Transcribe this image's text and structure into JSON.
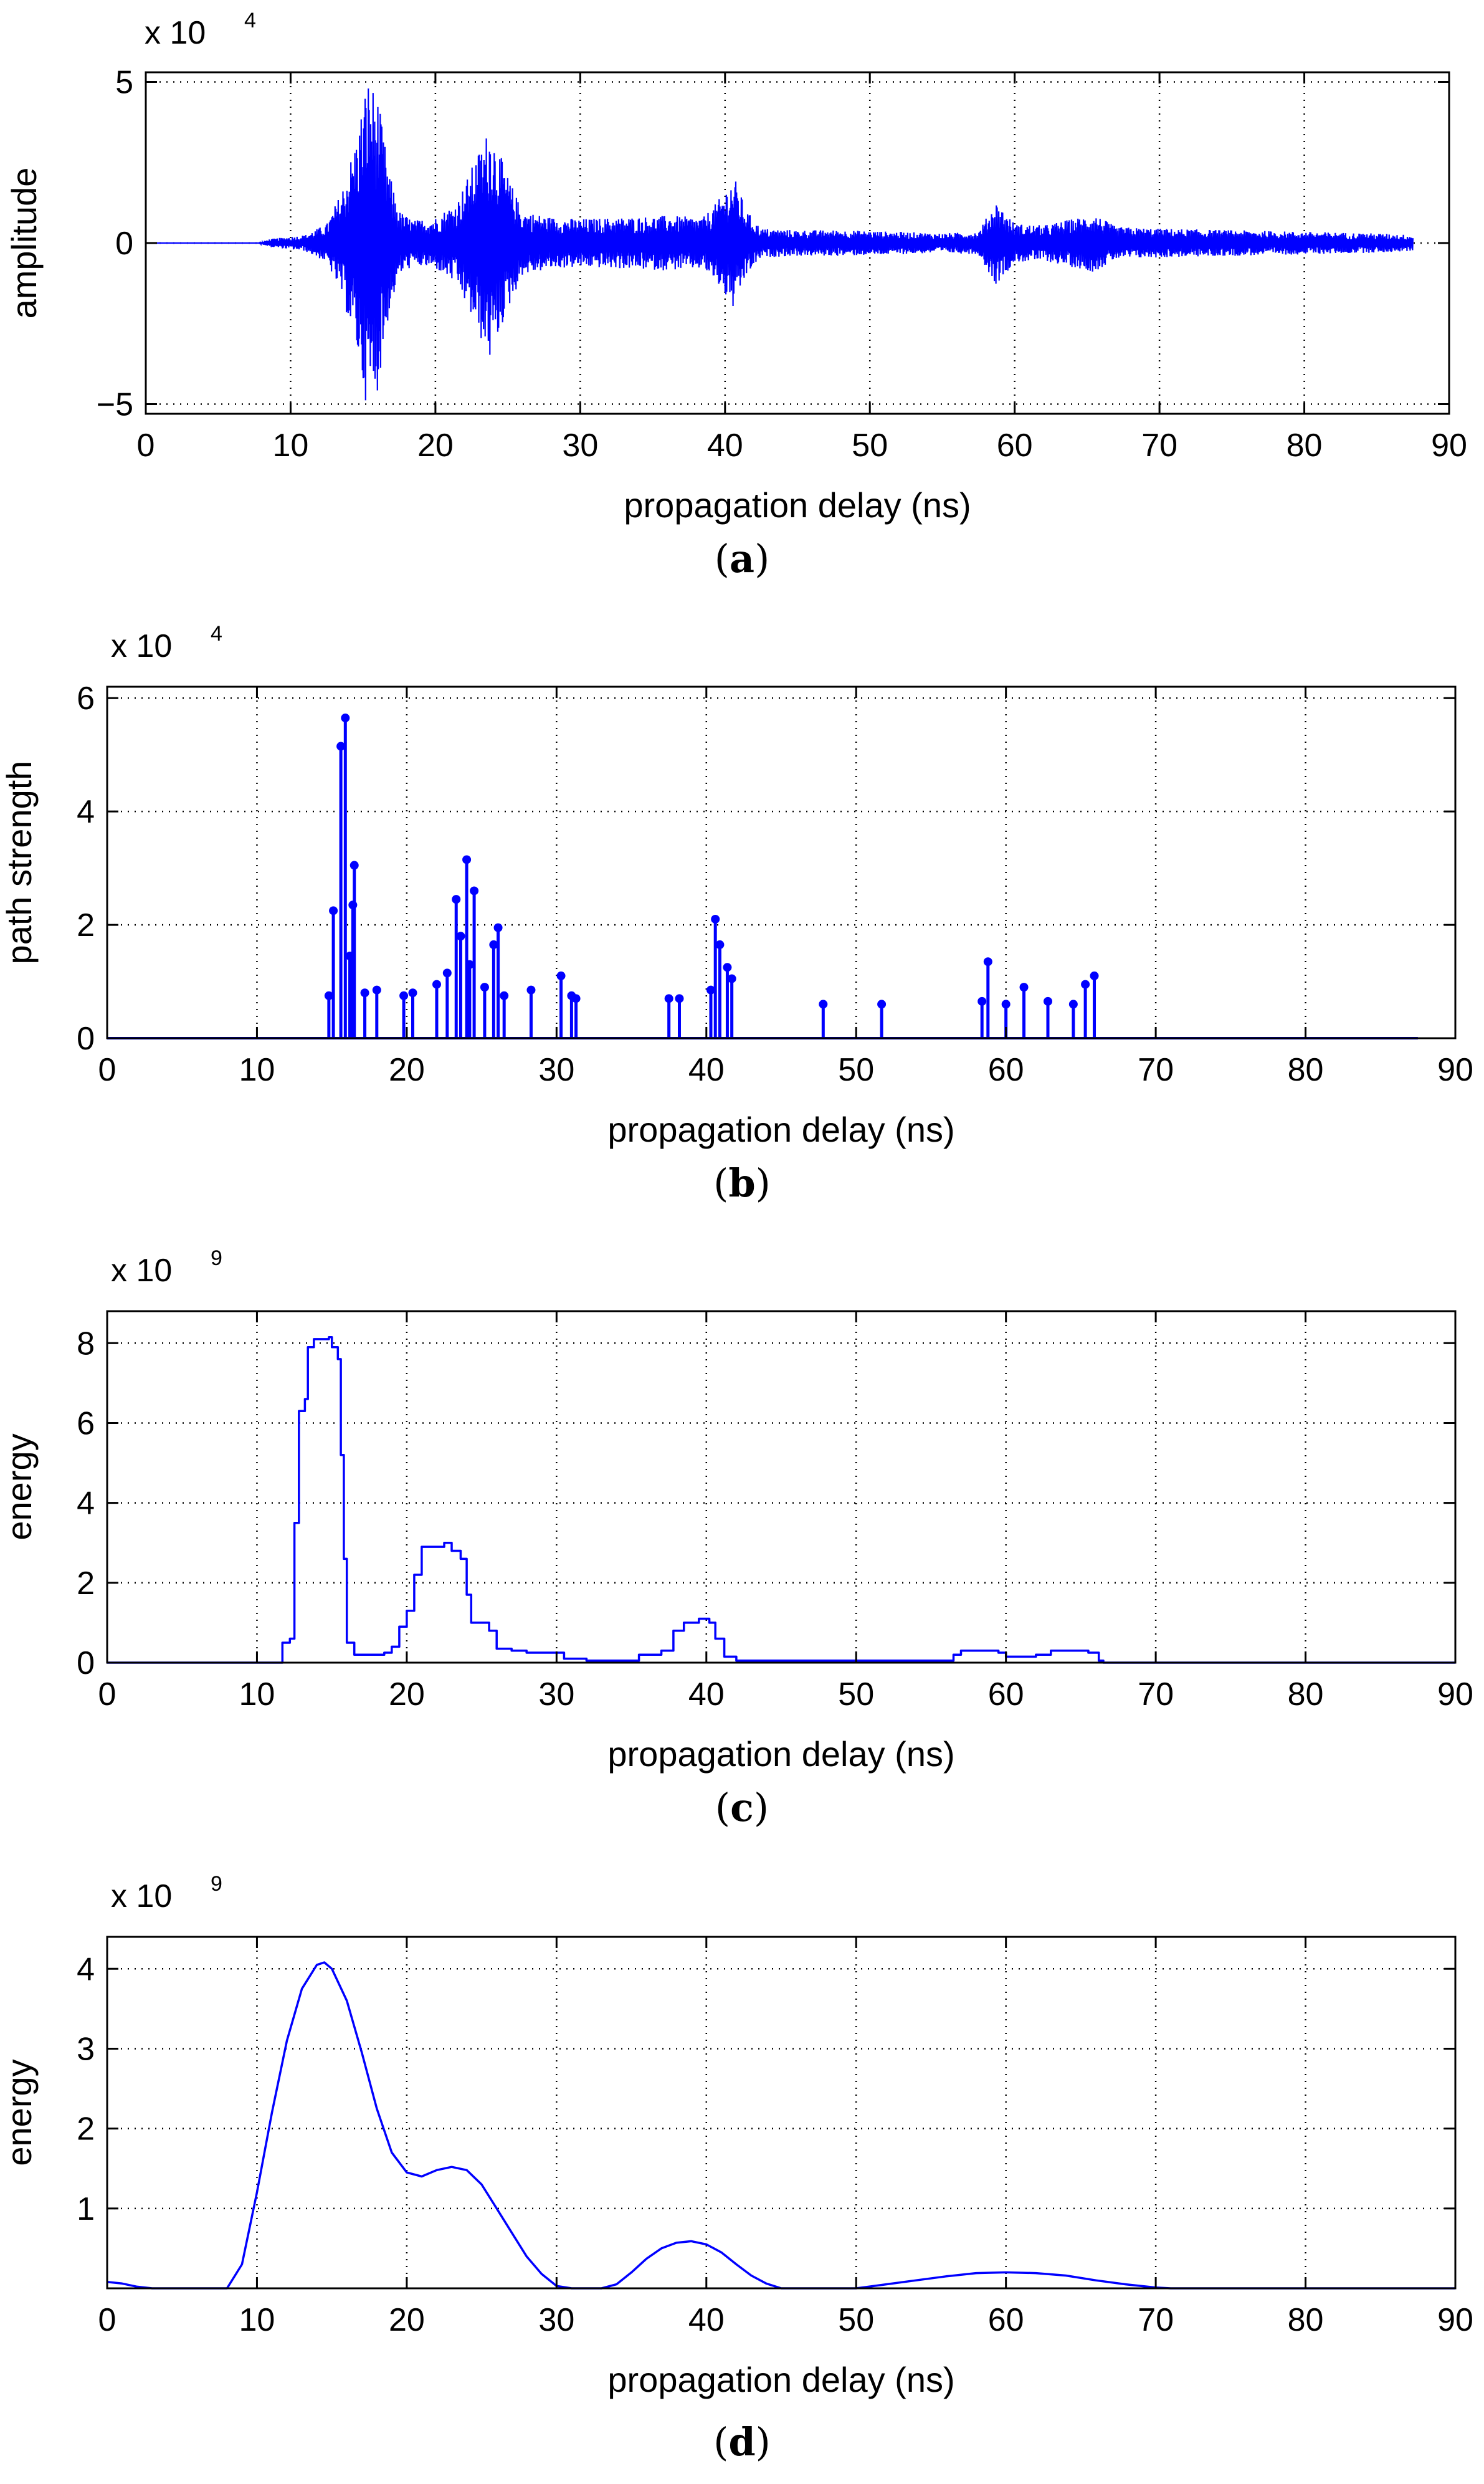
{
  "colors": {
    "line": "#0000ff",
    "axis": "#000000",
    "grid": "#000000"
  },
  "captions": [
    {
      "open": "(",
      "letter": "a",
      "close": ")"
    },
    {
      "open": "(",
      "letter": "b",
      "close": ")"
    },
    {
      "open": "(",
      "letter": "c",
      "close": ")"
    },
    {
      "open": "(",
      "letter": "d",
      "close": ")"
    }
  ],
  "chart_data": [
    {
      "id": "a",
      "type": "line",
      "title": "",
      "xlabel": "propagation delay (ns)",
      "ylabel": "amplitude",
      "exponent_label": "x 10",
      "exponent_power": "4",
      "xlim": [
        0,
        90
      ],
      "ylim": [
        -5.3,
        5.3
      ],
      "xticks": [
        0,
        10,
        20,
        30,
        40,
        50,
        60,
        70,
        80,
        90
      ],
      "yticks": [
        -5,
        0,
        5
      ],
      "ytick_labels": [
        "−5",
        "0",
        "5"
      ],
      "grid": true,
      "signal_range": [
        0,
        87.5
      ],
      "envelope": [
        {
          "x": 0,
          "y": 0
        },
        {
          "x": 7.8,
          "y": 0
        },
        {
          "x": 8.5,
          "y": 0.12
        },
        {
          "x": 11,
          "y": 0.25
        },
        {
          "x": 12.5,
          "y": 0.6
        },
        {
          "x": 13.5,
          "y": 1.6
        },
        {
          "x": 14.5,
          "y": 3.2
        },
        {
          "x": 15.3,
          "y": 5.2
        },
        {
          "x": 16,
          "y": 4.6
        },
        {
          "x": 16.8,
          "y": 2.2
        },
        {
          "x": 17.5,
          "y": 1.0
        },
        {
          "x": 18.5,
          "y": 0.7
        },
        {
          "x": 20,
          "y": 0.8
        },
        {
          "x": 21.5,
          "y": 1.3
        },
        {
          "x": 23.8,
          "y": 3.7
        },
        {
          "x": 24.8,
          "y": 2.3
        },
        {
          "x": 26,
          "y": 1.0
        },
        {
          "x": 28,
          "y": 0.8
        },
        {
          "x": 30,
          "y": 0.75
        },
        {
          "x": 33,
          "y": 0.8
        },
        {
          "x": 36,
          "y": 0.85
        },
        {
          "x": 38.5,
          "y": 0.8
        },
        {
          "x": 39.5,
          "y": 1.3
        },
        {
          "x": 40.6,
          "y": 2.1
        },
        {
          "x": 41.5,
          "y": 1.0
        },
        {
          "x": 42.5,
          "y": 0.45
        },
        {
          "x": 45,
          "y": 0.4
        },
        {
          "x": 48,
          "y": 0.4
        },
        {
          "x": 52,
          "y": 0.35
        },
        {
          "x": 55,
          "y": 0.3
        },
        {
          "x": 57.5,
          "y": 0.35
        },
        {
          "x": 58.7,
          "y": 1.3
        },
        {
          "x": 60,
          "y": 0.6
        },
        {
          "x": 62,
          "y": 0.55
        },
        {
          "x": 65.5,
          "y": 0.9
        },
        {
          "x": 67,
          "y": 0.5
        },
        {
          "x": 70,
          "y": 0.45
        },
        {
          "x": 75,
          "y": 0.4
        },
        {
          "x": 80,
          "y": 0.35
        },
        {
          "x": 85,
          "y": 0.3
        },
        {
          "x": 87.5,
          "y": 0.25
        }
      ]
    },
    {
      "id": "b",
      "type": "stem",
      "title": "",
      "xlabel": "propagation delay (ns)",
      "ylabel": "path strength",
      "exponent_label": "x 10",
      "exponent_power": "4",
      "xlim": [
        0,
        90
      ],
      "ylim": [
        0,
        6.2
      ],
      "xticks": [
        0,
        10,
        20,
        30,
        40,
        50,
        60,
        70,
        80,
        90
      ],
      "yticks": [
        0,
        2,
        4,
        6
      ],
      "ytick_labels": [
        "0",
        "2",
        "4",
        "6"
      ],
      "grid": true,
      "baseline_range": [
        0,
        87.5
      ],
      "points": [
        {
          "x": 14.8,
          "y": 0.75
        },
        {
          "x": 15.1,
          "y": 2.25
        },
        {
          "x": 15.6,
          "y": 5.15
        },
        {
          "x": 15.9,
          "y": 5.65
        },
        {
          "x": 16.2,
          "y": 1.45
        },
        {
          "x": 16.4,
          "y": 2.35
        },
        {
          "x": 16.5,
          "y": 3.05
        },
        {
          "x": 17.2,
          "y": 0.8
        },
        {
          "x": 18.0,
          "y": 0.85
        },
        {
          "x": 19.8,
          "y": 0.75
        },
        {
          "x": 20.4,
          "y": 0.8
        },
        {
          "x": 22.0,
          "y": 0.95
        },
        {
          "x": 22.7,
          "y": 1.15
        },
        {
          "x": 23.3,
          "y": 2.45
        },
        {
          "x": 23.6,
          "y": 1.8
        },
        {
          "x": 24.0,
          "y": 3.15
        },
        {
          "x": 24.2,
          "y": 1.3
        },
        {
          "x": 24.5,
          "y": 2.6
        },
        {
          "x": 25.2,
          "y": 0.9
        },
        {
          "x": 25.8,
          "y": 1.65
        },
        {
          "x": 26.1,
          "y": 1.95
        },
        {
          "x": 26.5,
          "y": 0.75
        },
        {
          "x": 28.3,
          "y": 0.85
        },
        {
          "x": 30.3,
          "y": 1.1
        },
        {
          "x": 31.0,
          "y": 0.75
        },
        {
          "x": 31.3,
          "y": 0.7
        },
        {
          "x": 37.5,
          "y": 0.7
        },
        {
          "x": 38.2,
          "y": 0.7
        },
        {
          "x": 40.3,
          "y": 0.85
        },
        {
          "x": 40.6,
          "y": 2.1
        },
        {
          "x": 40.9,
          "y": 1.65
        },
        {
          "x": 41.4,
          "y": 1.25
        },
        {
          "x": 41.7,
          "y": 1.05
        },
        {
          "x": 47.8,
          "y": 0.6
        },
        {
          "x": 51.7,
          "y": 0.6
        },
        {
          "x": 58.4,
          "y": 0.65
        },
        {
          "x": 58.8,
          "y": 1.35
        },
        {
          "x": 60.0,
          "y": 0.6
        },
        {
          "x": 61.2,
          "y": 0.9
        },
        {
          "x": 62.8,
          "y": 0.65
        },
        {
          "x": 64.5,
          "y": 0.6
        },
        {
          "x": 65.3,
          "y": 0.95
        },
        {
          "x": 65.9,
          "y": 1.1
        }
      ]
    },
    {
      "id": "c",
      "type": "line",
      "title": "",
      "xlabel": "propagation delay (ns)",
      "ylabel": "energy",
      "exponent_label": "x 10",
      "exponent_power": "9",
      "xlim": [
        0,
        90
      ],
      "ylim": [
        0,
        8.8
      ],
      "xticks": [
        0,
        10,
        20,
        30,
        40,
        50,
        60,
        70,
        80,
        90
      ],
      "yticks": [
        0,
        2,
        4,
        6,
        8
      ],
      "ytick_labels": [
        "0",
        "2",
        "4",
        "6",
        "8"
      ],
      "grid": true,
      "points": [
        {
          "x": 0,
          "y": 0
        },
        {
          "x": 11.5,
          "y": 0
        },
        {
          "x": 11.7,
          "y": 0.5
        },
        {
          "x": 12.2,
          "y": 0.6
        },
        {
          "x": 12.5,
          "y": 3.5
        },
        {
          "x": 12.8,
          "y": 6.3
        },
        {
          "x": 13.2,
          "y": 6.6
        },
        {
          "x": 13.4,
          "y": 7.9
        },
        {
          "x": 13.8,
          "y": 8.1
        },
        {
          "x": 14.8,
          "y": 8.15
        },
        {
          "x": 15.0,
          "y": 7.9
        },
        {
          "x": 15.4,
          "y": 7.6
        },
        {
          "x": 15.6,
          "y": 5.2
        },
        {
          "x": 15.8,
          "y": 2.6
        },
        {
          "x": 16.0,
          "y": 0.5
        },
        {
          "x": 16.5,
          "y": 0.2
        },
        {
          "x": 17.5,
          "y": 0.2
        },
        {
          "x": 18.5,
          "y": 0.25
        },
        {
          "x": 19.0,
          "y": 0.4
        },
        {
          "x": 19.5,
          "y": 0.9
        },
        {
          "x": 20.0,
          "y": 1.3
        },
        {
          "x": 20.5,
          "y": 2.2
        },
        {
          "x": 21.0,
          "y": 2.9
        },
        {
          "x": 22.5,
          "y": 3.0
        },
        {
          "x": 23.0,
          "y": 2.8
        },
        {
          "x": 23.6,
          "y": 2.6
        },
        {
          "x": 24.0,
          "y": 1.7
        },
        {
          "x": 24.3,
          "y": 1.0
        },
        {
          "x": 25.5,
          "y": 0.8
        },
        {
          "x": 26.0,
          "y": 0.35
        },
        {
          "x": 27.0,
          "y": 0.3
        },
        {
          "x": 28.0,
          "y": 0.25
        },
        {
          "x": 30.0,
          "y": 0.25
        },
        {
          "x": 30.5,
          "y": 0.1
        },
        {
          "x": 32.0,
          "y": 0.05
        },
        {
          "x": 35.0,
          "y": 0.05
        },
        {
          "x": 35.5,
          "y": 0.2
        },
        {
          "x": 37.0,
          "y": 0.3
        },
        {
          "x": 37.8,
          "y": 0.8
        },
        {
          "x": 38.5,
          "y": 1.0
        },
        {
          "x": 39.5,
          "y": 1.1
        },
        {
          "x": 40.2,
          "y": 1.0
        },
        {
          "x": 40.6,
          "y": 0.6
        },
        {
          "x": 41.2,
          "y": 0.15
        },
        {
          "x": 42.0,
          "y": 0.05
        },
        {
          "x": 56.0,
          "y": 0.05
        },
        {
          "x": 56.5,
          "y": 0.2
        },
        {
          "x": 57.0,
          "y": 0.3
        },
        {
          "x": 59.5,
          "y": 0.25
        },
        {
          "x": 60.0,
          "y": 0.15
        },
        {
          "x": 62.0,
          "y": 0.2
        },
        {
          "x": 63.0,
          "y": 0.3
        },
        {
          "x": 65.5,
          "y": 0.25
        },
        {
          "x": 66.2,
          "y": 0.05
        },
        {
          "x": 66.5,
          "y": 0
        },
        {
          "x": 90,
          "y": 0
        }
      ]
    },
    {
      "id": "d",
      "type": "line",
      "title": "",
      "xlabel": "propagation delay (ns)",
      "ylabel": "energy",
      "exponent_label": "x 10",
      "exponent_power": "9",
      "xlim": [
        0,
        90
      ],
      "ylim": [
        0,
        4.4
      ],
      "xticks": [
        0,
        10,
        20,
        30,
        40,
        50,
        60,
        70,
        80,
        90
      ],
      "yticks": [
        1,
        2,
        3,
        4
      ],
      "ytick_labels": [
        "1",
        "2",
        "3",
        "4"
      ],
      "grid": true,
      "points": [
        {
          "x": 0,
          "y": 0.08
        },
        {
          "x": 1,
          "y": 0.06
        },
        {
          "x": 2,
          "y": 0.02
        },
        {
          "x": 3,
          "y": 0
        },
        {
          "x": 8,
          "y": 0
        },
        {
          "x": 9,
          "y": 0.3
        },
        {
          "x": 10,
          "y": 1.2
        },
        {
          "x": 11,
          "y": 2.2
        },
        {
          "x": 12,
          "y": 3.1
        },
        {
          "x": 13,
          "y": 3.75
        },
        {
          "x": 14,
          "y": 4.05
        },
        {
          "x": 14.5,
          "y": 4.08
        },
        {
          "x": 15,
          "y": 4.0
        },
        {
          "x": 16,
          "y": 3.6
        },
        {
          "x": 17,
          "y": 2.95
        },
        {
          "x": 18,
          "y": 2.25
        },
        {
          "x": 19,
          "y": 1.7
        },
        {
          "x": 20,
          "y": 1.45
        },
        {
          "x": 21,
          "y": 1.4
        },
        {
          "x": 22,
          "y": 1.48
        },
        {
          "x": 23,
          "y": 1.52
        },
        {
          "x": 24,
          "y": 1.48
        },
        {
          "x": 25,
          "y": 1.3
        },
        {
          "x": 26,
          "y": 1.0
        },
        {
          "x": 27,
          "y": 0.7
        },
        {
          "x": 28,
          "y": 0.4
        },
        {
          "x": 29,
          "y": 0.18
        },
        {
          "x": 30,
          "y": 0.03
        },
        {
          "x": 31,
          "y": 0
        },
        {
          "x": 33,
          "y": 0
        },
        {
          "x": 34,
          "y": 0.05
        },
        {
          "x": 35,
          "y": 0.2
        },
        {
          "x": 36,
          "y": 0.37
        },
        {
          "x": 37,
          "y": 0.5
        },
        {
          "x": 38,
          "y": 0.57
        },
        {
          "x": 39,
          "y": 0.59
        },
        {
          "x": 40,
          "y": 0.55
        },
        {
          "x": 41,
          "y": 0.45
        },
        {
          "x": 42,
          "y": 0.3
        },
        {
          "x": 43,
          "y": 0.16
        },
        {
          "x": 44,
          "y": 0.06
        },
        {
          "x": 45,
          "y": 0
        },
        {
          "x": 50,
          "y": 0
        },
        {
          "x": 52,
          "y": 0.05
        },
        {
          "x": 54,
          "y": 0.1
        },
        {
          "x": 56,
          "y": 0.15
        },
        {
          "x": 58,
          "y": 0.19
        },
        {
          "x": 60,
          "y": 0.2
        },
        {
          "x": 62,
          "y": 0.19
        },
        {
          "x": 64,
          "y": 0.16
        },
        {
          "x": 66,
          "y": 0.1
        },
        {
          "x": 68,
          "y": 0.05
        },
        {
          "x": 70,
          "y": 0.01
        },
        {
          "x": 71,
          "y": 0
        },
        {
          "x": 90,
          "y": 0
        }
      ]
    }
  ]
}
